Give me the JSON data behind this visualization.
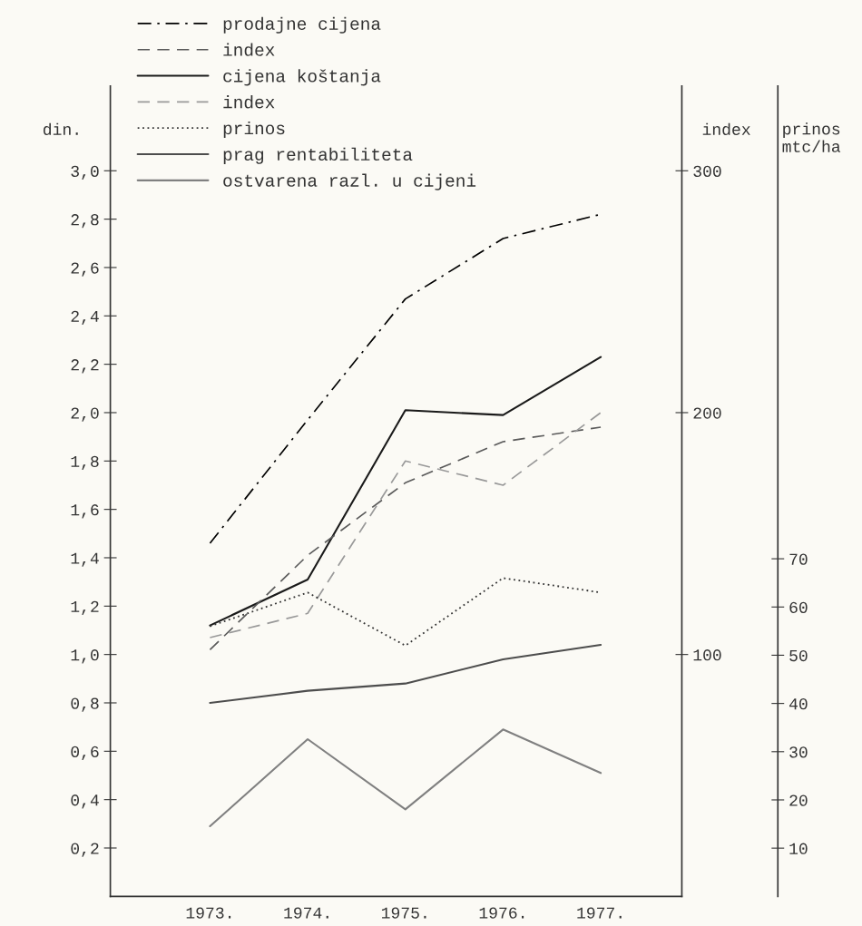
{
  "chart_data": {
    "type": "line",
    "ylabel": "din.",
    "y2label": "index",
    "y3label": "prinos\nmtc/ha",
    "categories": [
      "1973.",
      "1974.",
      "1975.",
      "1976.",
      "1977."
    ],
    "ylim": [
      0,
      3.35
    ],
    "yticks": [
      {
        "value": 0.2,
        "label": "0,2"
      },
      {
        "value": 0.4,
        "label": "0,4"
      },
      {
        "value": 0.6,
        "label": "0,6"
      },
      {
        "value": 0.8,
        "label": "0,8"
      },
      {
        "value": 1.0,
        "label": "1,0"
      },
      {
        "value": 1.2,
        "label": "1,2"
      },
      {
        "value": 1.4,
        "label": "1,4"
      },
      {
        "value": 1.6,
        "label": "1,6"
      },
      {
        "value": 1.8,
        "label": "1,8"
      },
      {
        "value": 2.0,
        "label": "2,0"
      },
      {
        "value": 2.2,
        "label": "2,2"
      },
      {
        "value": 2.4,
        "label": "2,4"
      },
      {
        "value": 2.6,
        "label": "2,6"
      },
      {
        "value": 2.8,
        "label": "2,8"
      },
      {
        "value": 3.0,
        "label": "3,0"
      }
    ],
    "y2lim": [
      0,
      335
    ],
    "y2ticks": [
      100,
      200,
      300
    ],
    "y3lim": [
      0,
      168
    ],
    "y3ticks": [
      10,
      20,
      30,
      40,
      50,
      60,
      70
    ],
    "legend": "top",
    "series": [
      {
        "name": "prodajne cijena",
        "color": "#000000",
        "line_style": "dashdot",
        "values": [
          1.46,
          1.97,
          2.47,
          2.72,
          2.82
        ]
      },
      {
        "name": "index",
        "color": "#5a5a5a",
        "line_style": "dashed",
        "axis": "y2",
        "values": [
          102,
          141,
          171,
          188,
          194
        ]
      },
      {
        "name": "cijena koštanja",
        "color": "#1a1a1a",
        "line_style": "solid",
        "values": [
          1.12,
          1.31,
          2.01,
          1.99,
          2.23
        ]
      },
      {
        "name": "index",
        "color": "#999999",
        "line_style": "dashed",
        "axis": "y2",
        "values": [
          107,
          117,
          180,
          170,
          200
        ]
      },
      {
        "name": "prinos",
        "color": "#333333",
        "line_style": "dotted",
        "axis": "y3",
        "values": [
          56,
          63,
          52,
          66,
          63
        ]
      },
      {
        "name": "prag rentabiliteta",
        "color": "#4d4d4d",
        "line_style": "solid",
        "values": [
          0.8,
          0.85,
          0.88,
          0.98,
          1.04
        ]
      },
      {
        "name": "ostvarena razl. u cijeni",
        "color": "#808080",
        "line_style": "solid",
        "values": [
          0.29,
          0.65,
          0.36,
          0.69,
          0.51
        ]
      }
    ]
  }
}
